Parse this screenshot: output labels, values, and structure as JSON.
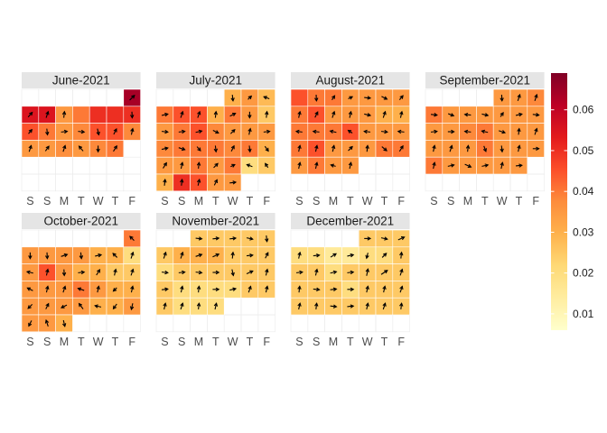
{
  "chart_data": {
    "type": "heatmap",
    "title": "",
    "xlabel": "",
    "ylabel": "",
    "weekday_labels": [
      "S",
      "S",
      "M",
      "T",
      "W",
      "T",
      "F"
    ],
    "legend": {
      "title": "",
      "ticks": [
        "0.01",
        "0.02",
        "0.03",
        "0.04",
        "0.05",
        "0.06"
      ],
      "tick_values": [
        0.01,
        0.02,
        0.03,
        0.04,
        0.05,
        0.06
      ],
      "range": [
        0.006,
        0.069
      ],
      "placement": "right"
    },
    "color_scale": [
      "#ffffcc",
      "#ffeda0",
      "#fed976",
      "#feb24c",
      "#fd8d3c",
      "#fc4e2a",
      "#e31a1c",
      "#bd0026",
      "#800026"
    ],
    "panels": [
      {
        "label": "June-2021",
        "start_col": 6,
        "values": [
          0.064,
          0.055,
          0.055,
          0.035,
          0.04,
          0.05,
          0.05,
          0.05,
          0.045,
          0.04,
          0.035,
          0.038,
          0.045,
          0.045,
          0.038,
          0.035,
          0.035,
          0.037,
          0.035,
          0.038,
          0.04
        ],
        "arrows": [
          [
            0.7,
            0.7
          ],
          [
            0.6,
            0.7
          ],
          [
            0.3,
            0.9
          ],
          [
            0.1,
            0.9
          ],
          [
            0,
            0
          ],
          [
            0,
            0
          ],
          [
            0,
            0
          ],
          [
            0.05,
            -0.9
          ],
          [
            0.5,
            0.6
          ],
          [
            0.1,
            -0.9
          ],
          [
            0.9,
            0.1
          ],
          [
            0.9,
            -0.1
          ],
          [
            0.2,
            -0.9
          ],
          [
            0.4,
            0.8
          ],
          [
            0.2,
            0.9
          ],
          [
            0.3,
            0.9
          ],
          [
            0.5,
            0.7
          ],
          [
            0.3,
            0.9
          ],
          [
            -0.6,
            0.7
          ],
          [
            0,
            -0.9
          ],
          [
            0.5,
            0.8
          ]
        ]
      },
      {
        "label": "July-2021",
        "start_col": 4,
        "values": [
          0.03,
          0.035,
          0.028,
          0.04,
          0.045,
          0.045,
          0.03,
          0.04,
          0.035,
          0.025,
          0.035,
          0.04,
          0.045,
          0.038,
          0.035,
          0.035,
          0.035,
          0.038,
          0.04,
          0.04,
          0.04,
          0.038,
          0.04,
          0.03,
          0.035,
          0.035,
          0.04,
          0.035,
          0.04,
          0.02,
          0.025,
          0.03,
          0.05,
          0.045,
          0.035,
          0.035
        ],
        "arrows": [
          [
            0.1,
            -0.9
          ],
          [
            0.5,
            0.5
          ],
          [
            -0.8,
            0.3
          ],
          [
            0.9,
            0.2
          ],
          [
            0.3,
            0.9
          ],
          [
            0.3,
            0.9
          ],
          [
            0.1,
            0.9
          ],
          [
            0.8,
            0.4
          ],
          [
            0,
            -0.9
          ],
          [
            0.1,
            0.9
          ],
          [
            0.9,
            -0.1
          ],
          [
            0.9,
            0.1
          ],
          [
            0.9,
            0.2
          ],
          [
            0.8,
            -0.4
          ],
          [
            0.6,
            0.6
          ],
          [
            0.2,
            0.9
          ],
          [
            0.9,
            0.1
          ],
          [
            0.9,
            0.2
          ],
          [
            0.9,
            -0.3
          ],
          [
            0.5,
            -0.6
          ],
          [
            0.1,
            -0.9
          ],
          [
            0.4,
            0.8
          ],
          [
            0.1,
            -0.9
          ],
          [
            0.5,
            -0.7
          ],
          [
            0.5,
            0.8
          ],
          [
            0.2,
            0.9
          ],
          [
            0.1,
            0.9
          ],
          [
            0.6,
            0.6
          ],
          [
            0.6,
            0.3
          ],
          [
            -0.8,
            0.3
          ],
          [
            -0.4,
            0.6
          ],
          [
            0.1,
            0.9
          ],
          [
            0.1,
            0.9
          ],
          [
            0.2,
            0.9
          ],
          [
            0.4,
            0.8
          ],
          [
            0.9,
            0.1
          ]
        ]
      },
      {
        "label": "August-2021",
        "start_col": 0,
        "values": [
          0.045,
          0.04,
          0.04,
          0.035,
          0.035,
          0.035,
          0.035,
          0.04,
          0.045,
          0.035,
          0.035,
          0.035,
          0.03,
          0.03,
          0.04,
          0.04,
          0.04,
          0.045,
          0.035,
          0.035,
          0.035,
          0.04,
          0.045,
          0.035,
          0.035,
          0.035,
          0.04,
          0.04,
          0.035,
          0.04,
          0.035,
          0.035
        ],
        "arrows": [
          [
            0,
            0
          ],
          [
            0.05,
            -0.9
          ],
          [
            0.4,
            0.6
          ],
          [
            0.6,
            0.3
          ],
          [
            0.9,
            -0.1
          ],
          [
            0.8,
            -0.4
          ],
          [
            0.5,
            0.6
          ],
          [
            0.2,
            0.9
          ],
          [
            0.4,
            0.8
          ],
          [
            0.3,
            0.9
          ],
          [
            0.2,
            0.9
          ],
          [
            0.9,
            -0.2
          ],
          [
            0.3,
            0.9
          ],
          [
            0.2,
            0.9
          ],
          [
            -0.9,
            0.1
          ],
          [
            -0.9,
            0.1
          ],
          [
            -0.9,
            0.2
          ],
          [
            -0.6,
            0.4
          ],
          [
            -0.9,
            0.1
          ],
          [
            0.9,
            -0.1
          ],
          [
            -0.9,
            0.1
          ],
          [
            0.2,
            0.9
          ],
          [
            0.2,
            0.9
          ],
          [
            0.2,
            0.9
          ],
          [
            0.6,
            0.6
          ],
          [
            0.1,
            0.9
          ],
          [
            0.7,
            -0.6
          ],
          [
            0.5,
            0.8
          ],
          [
            0.2,
            0.9
          ],
          [
            0.2,
            0.9
          ],
          [
            -0.7,
            0.2
          ],
          [
            0.2,
            0.9
          ]
        ]
      },
      {
        "label": "September-2021",
        "start_col": 4,
        "values": [
          0.035,
          0.035,
          0.038,
          0.04,
          0.035,
          0.035,
          0.035,
          0.035,
          0.035,
          0.035,
          0.035,
          0.035,
          0.038,
          0.04,
          0.035,
          0.035,
          0.035,
          0.035,
          0.035,
          0.035,
          0.04,
          0.035,
          0.035,
          0.035,
          0.04,
          0.035,
          0.035,
          0.035,
          0.035,
          0.035
        ],
        "arrows": [
          [
            0.05,
            -0.9
          ],
          [
            0.3,
            0.9
          ],
          [
            0.3,
            0.9
          ],
          [
            0.9,
            -0.1
          ],
          [
            0.8,
            -0.3
          ],
          [
            -0.9,
            0.1
          ],
          [
            0.9,
            -0.2
          ],
          [
            0.4,
            0.6
          ],
          [
            0.9,
            0.2
          ],
          [
            0.9,
            -0.1
          ],
          [
            0.9,
            0.1
          ],
          [
            0.9,
            0
          ],
          [
            -0.9,
            0.1
          ],
          [
            -0.9,
            0.2
          ],
          [
            0.9,
            -0.3
          ],
          [
            0.1,
            0.9
          ],
          [
            0.3,
            0.9
          ],
          [
            0.2,
            0.9
          ],
          [
            0.3,
            0.9
          ],
          [
            0.1,
            0.9
          ],
          [
            0.3,
            -0.8
          ],
          [
            0.1,
            -0.9
          ],
          [
            0.2,
            0.9
          ],
          [
            0.9,
            0
          ],
          [
            0.2,
            0.9
          ],
          [
            0.9,
            0.2
          ],
          [
            0.9,
            -0.4
          ],
          [
            0.9,
            0.2
          ],
          [
            0.2,
            0.9
          ],
          [
            0.9,
            0.1
          ]
        ]
      },
      {
        "label": "October-2021",
        "start_col": 6,
        "values": [
          0.04,
          0.035,
          0.035,
          0.035,
          0.035,
          0.03,
          0.03,
          0.02,
          0.035,
          0.045,
          0.035,
          0.03,
          0.03,
          0.025,
          0.025,
          0.035,
          0.035,
          0.035,
          0.04,
          0.035,
          0.03,
          0.03,
          0.035,
          0.035,
          0.035,
          0.035,
          0.03,
          0.03,
          0.035,
          0.035,
          0.035,
          0.03
        ],
        "arrows": [
          [
            -0.6,
            0.6
          ],
          [
            0,
            -0.9
          ],
          [
            0.05,
            -0.9
          ],
          [
            0.9,
            0.3
          ],
          [
            0.1,
            -0.9
          ],
          [
            0.9,
            0.2
          ],
          [
            -0.6,
            0.6
          ],
          [
            0.3,
            0.9
          ],
          [
            -0.9,
            0.2
          ],
          [
            0.2,
            0.9
          ],
          [
            0.05,
            -0.9
          ],
          [
            0.9,
            0.1
          ],
          [
            0.5,
            0.8
          ],
          [
            0.2,
            0.9
          ],
          [
            0.3,
            0.9
          ],
          [
            -0.8,
            0.4
          ],
          [
            0.2,
            0.9
          ],
          [
            0.3,
            0.9
          ],
          [
            -0.9,
            0.3
          ],
          [
            0.2,
            0.9
          ],
          [
            -0.5,
            -0.5
          ],
          [
            0.2,
            0.9
          ],
          [
            -0.6,
            -0.6
          ],
          [
            0.4,
            0.8
          ],
          [
            -0.8,
            -0.4
          ],
          [
            -0.6,
            0.8
          ],
          [
            -0.9,
            0.2
          ],
          [
            -0.5,
            -0.7
          ],
          [
            -0.2,
            -0.9
          ],
          [
            -0.4,
            -0.8
          ],
          [
            -0.3,
            0.9
          ],
          [
            0.2,
            -0.9
          ]
        ]
      },
      {
        "label": "November-2021",
        "start_col": 2,
        "values": [
          0.025,
          0.025,
          0.025,
          0.025,
          0.025,
          0.025,
          0.03,
          0.03,
          0.03,
          0.025,
          0.025,
          0.025,
          0.02,
          0.025,
          0.025,
          0.025,
          0.025,
          0.025,
          0.025,
          0.025,
          0.02,
          0.02,
          0.02,
          0.02,
          0.025,
          0.025,
          0.025,
          0.02,
          0.02,
          0.02
        ],
        "arrows": [
          [
            0.9,
            -0.1
          ],
          [
            0.9,
            0.1
          ],
          [
            0.9,
            0.1
          ],
          [
            0.9,
            -0.2
          ],
          [
            0.1,
            -0.9
          ],
          [
            0.3,
            0.9
          ],
          [
            0.3,
            0.9
          ],
          [
            0.9,
            0.3
          ],
          [
            0.9,
            0.4
          ],
          [
            0.1,
            0.9
          ],
          [
            0.9,
            0.1
          ],
          [
            0.4,
            0.8
          ],
          [
            0.9,
            -0.1
          ],
          [
            0.9,
            0.1
          ],
          [
            0.9,
            -0.1
          ],
          [
            0.9,
            0
          ],
          [
            0.2,
            -0.9
          ],
          [
            0.9,
            0.4
          ],
          [
            0.2,
            0.9
          ],
          [
            0.9,
            0.1
          ],
          [
            0.2,
            0.9
          ],
          [
            0.1,
            0.9
          ],
          [
            0.9,
            0
          ],
          [
            0.9,
            0.2
          ],
          [
            0.3,
            0.9
          ],
          [
            0.2,
            0.9
          ],
          [
            0.2,
            0.9
          ],
          [
            0.3,
            0.9
          ],
          [
            0.1,
            0.9
          ],
          [
            0.2,
            0.9
          ]
        ]
      },
      {
        "label": "December-2021",
        "start_col": 4,
        "values": [
          0.025,
          0.025,
          0.025,
          0.02,
          0.02,
          0.015,
          0.015,
          0.02,
          0.02,
          0.025,
          0.025,
          0.025,
          0.02,
          0.025,
          0.025,
          0.025,
          0.025,
          0.025,
          0.025,
          0.025,
          0.02,
          0.025,
          0.025,
          0.025,
          0.025,
          0.025,
          0.025,
          0.025,
          0.025,
          0.025,
          0.025
        ],
        "arrows": [
          [
            0.9,
            0
          ],
          [
            0.9,
            -0.2
          ],
          [
            0.9,
            0.4
          ],
          [
            0.2,
            0.9
          ],
          [
            0.9,
            0.1
          ],
          [
            0.8,
            0.5
          ],
          [
            0.9,
            0.2
          ],
          [
            -0.2,
            -0.8
          ],
          [
            0.6,
            0.6
          ],
          [
            0.1,
            0.9
          ],
          [
            0.9,
            0.1
          ],
          [
            0.2,
            0.9
          ],
          [
            0.9,
            0.2
          ],
          [
            0.9,
            0.1
          ],
          [
            0.2,
            1.0
          ],
          [
            0.9,
            0.6
          ],
          [
            0.3,
            0.9
          ],
          [
            0.1,
            0.9
          ],
          [
            0.9,
            -0.1
          ],
          [
            0.9,
            0.1
          ],
          [
            0.9,
            0
          ],
          [
            0.2,
            0.9
          ],
          [
            0.2,
            0.9
          ],
          [
            0.3,
            0.9
          ],
          [
            0.2,
            0.9
          ],
          [
            0.1,
            0.9
          ],
          [
            0.9,
            -0.1
          ],
          [
            0.9,
            0.1
          ],
          [
            0.2,
            0.9
          ],
          [
            0.3,
            0.9
          ],
          [
            0.1,
            0.9
          ]
        ]
      }
    ]
  }
}
